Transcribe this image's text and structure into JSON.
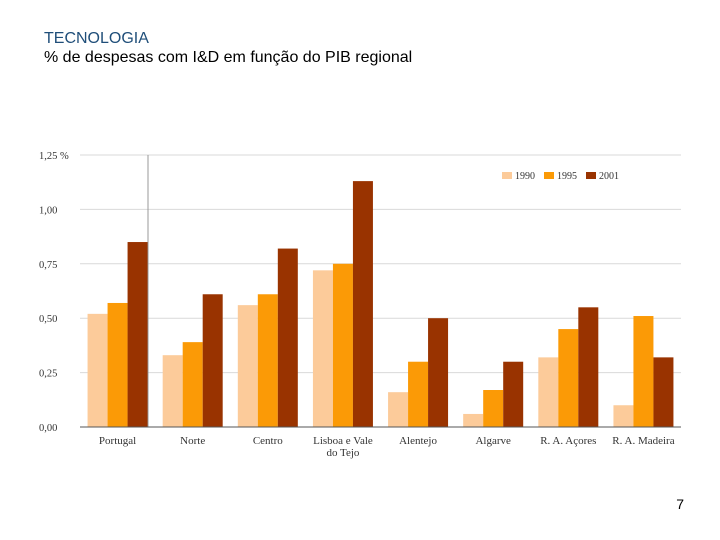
{
  "slide": {
    "title": "TECNOLOGIA",
    "subtitle": "% de despesas com I&D em função do PIB regional",
    "page_number": "7"
  },
  "colors": {
    "series_1990": "#fccb9a",
    "series_1995": "#fb9a06",
    "series_2001": "#993300",
    "grid": "#d9d9d9",
    "axis": "#555555"
  },
  "chart_data": {
    "type": "bar",
    "title": "",
    "xlabel": "",
    "ylabel": "",
    "unit": "%",
    "ylim": [
      0,
      1.25
    ],
    "yticks": [
      {
        "value": 0,
        "label": "0,00"
      },
      {
        "value": 0.25,
        "label": "0,25"
      },
      {
        "value": 0.5,
        "label": "0,50"
      },
      {
        "value": 0.75,
        "label": "0,75"
      },
      {
        "value": 1.0,
        "label": "1,00"
      },
      {
        "value": 1.25,
        "label": "1,25 %"
      }
    ],
    "categories": [
      "Portugal",
      "Norte",
      "Centro",
      "Lisboa e Vale do Tejo",
      "Alentejo",
      "Algarve",
      "R. A. Açores",
      "R. A. Madeira"
    ],
    "category_lines": [
      [
        "Portugal"
      ],
      [
        "Norte"
      ],
      [
        "Centro"
      ],
      [
        "Lisboa e Vale",
        "do Tejo"
      ],
      [
        "Alentejo"
      ],
      [
        "Algarve"
      ],
      [
        "R. A. Açores"
      ],
      [
        "R. A. Madeira"
      ]
    ],
    "series": [
      {
        "name": "1990",
        "values": [
          0.52,
          0.33,
          0.56,
          0.72,
          0.16,
          0.06,
          0.32,
          0.1
        ]
      },
      {
        "name": "1995",
        "values": [
          0.57,
          0.39,
          0.61,
          0.75,
          0.3,
          0.17,
          0.45,
          0.51
        ]
      },
      {
        "name": "2001",
        "values": [
          0.85,
          0.61,
          0.82,
          1.13,
          0.5,
          0.3,
          0.55,
          0.32
        ]
      }
    ],
    "grid": true,
    "legend_position": "top-right"
  }
}
